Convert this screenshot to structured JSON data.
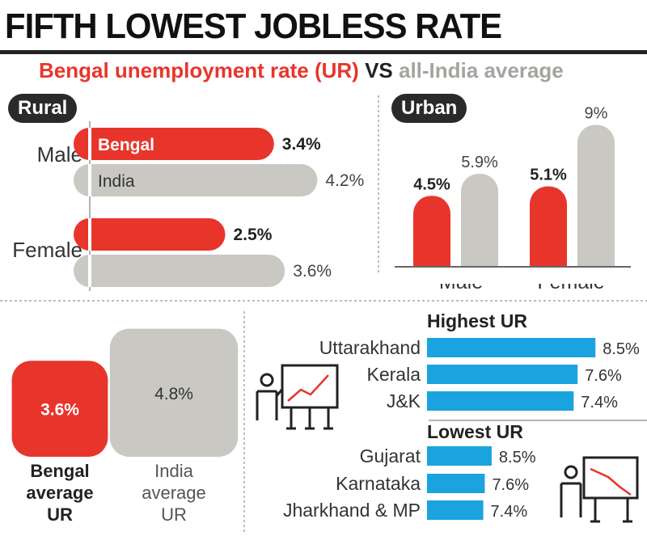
{
  "header": {
    "title": "FIFTH LOWEST JOBLESS RATE",
    "subtitle_part1": "Bengal unemployment rate (UR)",
    "subtitle_part2": "VS",
    "subtitle_part3": "all-India average"
  },
  "colors": {
    "bengal": "#e8352b",
    "india": "#c9c8c2",
    "state_bar": "#1aa3df",
    "dark": "#2a2a2a"
  },
  "chart_data": [
    {
      "type": "bar",
      "orientation": "horizontal",
      "title": "Rural",
      "categories": [
        "Male",
        "Female"
      ],
      "series": [
        {
          "name": "Bengal",
          "values": [
            3.4,
            2.5
          ],
          "labels": [
            "3.4%",
            "2.5%"
          ]
        },
        {
          "name": "India",
          "values": [
            4.2,
            3.6
          ],
          "labels": [
            "4.2%",
            "3.6%"
          ]
        }
      ],
      "unit": "%"
    },
    {
      "type": "bar",
      "orientation": "vertical",
      "title": "Urban",
      "categories": [
        "Male",
        "Female"
      ],
      "series": [
        {
          "name": "Bengal",
          "values": [
            4.5,
            5.1
          ],
          "labels": [
            "4.5%",
            "5.1%"
          ]
        },
        {
          "name": "India",
          "values": [
            5.9,
            9
          ],
          "labels": [
            "5.9%",
            "9%"
          ]
        }
      ],
      "unit": "%"
    },
    {
      "type": "bar",
      "title": "average UR",
      "categories": [
        "Bengal average UR",
        "India average UR"
      ],
      "category_lines": [
        [
          "Bengal",
          "average",
          "UR"
        ],
        [
          "India",
          "average",
          "UR"
        ]
      ],
      "values": [
        3.6,
        4.8
      ],
      "labels": [
        "3.6%",
        "4.8%"
      ],
      "unit": "%"
    },
    {
      "type": "bar",
      "orientation": "horizontal",
      "title": "Highest UR",
      "categories": [
        "Uttarakhand",
        "Kerala",
        "J&K"
      ],
      "values": [
        8.5,
        7.6,
        7.4
      ],
      "labels": [
        "8.5%",
        "7.6%",
        "7.4%"
      ],
      "unit": "%"
    },
    {
      "type": "bar",
      "orientation": "horizontal",
      "title": "Lowest UR",
      "categories": [
        "Gujarat",
        "Karnataka",
        "Jharkhand & MP"
      ],
      "values": [
        8.5,
        7.6,
        7.4
      ],
      "labels": [
        "8.5%",
        "7.6%",
        "7.4%"
      ],
      "unit": "%"
    }
  ]
}
